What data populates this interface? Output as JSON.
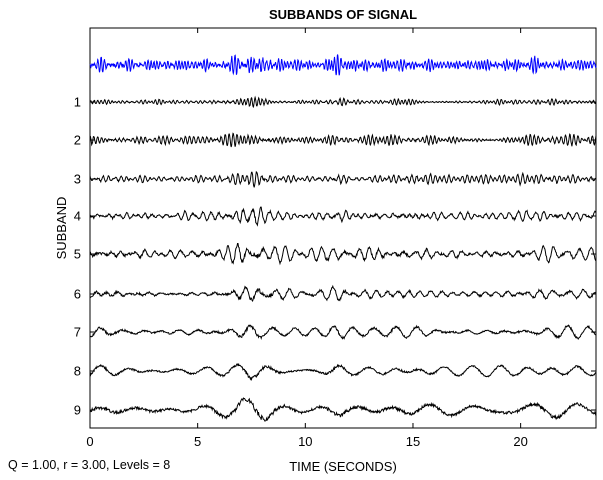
{
  "chart_data": {
    "type": "line",
    "title": "SUBBANDS OF SIGNAL",
    "xlabel": "TIME (SECONDS)",
    "ylabel": "SUBBAND",
    "xlim": [
      0,
      23.5
    ],
    "x_ticks": [
      0,
      5,
      10,
      15,
      20
    ],
    "y_tick_labels": [
      "1",
      "2",
      "3",
      "4",
      "5",
      "6",
      "7",
      "8",
      "9"
    ],
    "series": [
      {
        "label": "",
        "color": "#0000ff",
        "cycles_per_second": 7.0,
        "amplitude": 0.75
      },
      {
        "label": "1",
        "color": "#000000",
        "cycles_per_second": 6.0,
        "amplitude": 0.35
      },
      {
        "label": "2",
        "color": "#000000",
        "cycles_per_second": 5.0,
        "amplitude": 0.5
      },
      {
        "label": "3",
        "color": "#000000",
        "cycles_per_second": 4.0,
        "amplitude": 0.6
      },
      {
        "label": "4",
        "color": "#000000",
        "cycles_per_second": 3.0,
        "amplitude": 0.65
      },
      {
        "label": "5",
        "color": "#000000",
        "cycles_per_second": 2.2,
        "amplitude": 0.75
      },
      {
        "label": "6",
        "color": "#000000",
        "cycles_per_second": 1.6,
        "amplitude": 0.55
      },
      {
        "label": "7",
        "color": "#000000",
        "cycles_per_second": 1.1,
        "amplitude": 0.5
      },
      {
        "label": "8",
        "color": "#000000",
        "cycles_per_second": 0.75,
        "amplitude": 0.6
      },
      {
        "label": "9",
        "color": "#000000",
        "cycles_per_second": 0.5,
        "amplitude": 0.85
      }
    ],
    "grid": false
  },
  "caption": "Q = 1.00, r = 3.00, Levels = 8"
}
